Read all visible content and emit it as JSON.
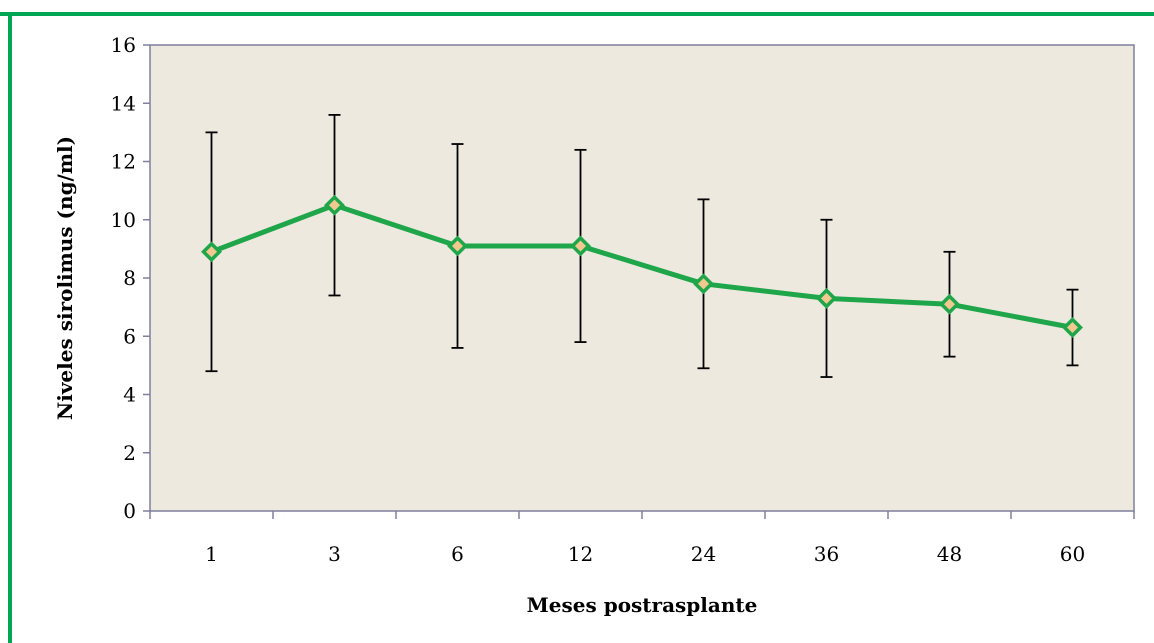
{
  "chart_data": {
    "type": "line",
    "title": "",
    "xlabel": "Meses postrasplante",
    "ylabel": "Niveles sirolimus (ng/ml)",
    "ylim": [
      0,
      16
    ],
    "yticks": [
      0,
      2,
      4,
      6,
      8,
      10,
      12,
      14,
      16
    ],
    "categories": [
      "1",
      "3",
      "6",
      "12",
      "24",
      "36",
      "48",
      "60"
    ],
    "series": [
      {
        "values": [
          8.9,
          10.5,
          9.1,
          9.1,
          7.8,
          7.3,
          7.1,
          6.3
        ],
        "error_low": [
          4.8,
          7.4,
          5.6,
          5.8,
          4.9,
          4.6,
          5.3,
          5.0
        ],
        "error_high": [
          13.0,
          13.6,
          12.6,
          12.4,
          10.7,
          10.0,
          8.9,
          7.6
        ]
      }
    ],
    "grid": false,
    "legend": "none",
    "colors": {
      "line": "#1fa64a",
      "marker_fill": "#f0c890",
      "plot_background": "#ede9df",
      "frame": "#00a651",
      "axis": "#7f7f9f"
    }
  }
}
